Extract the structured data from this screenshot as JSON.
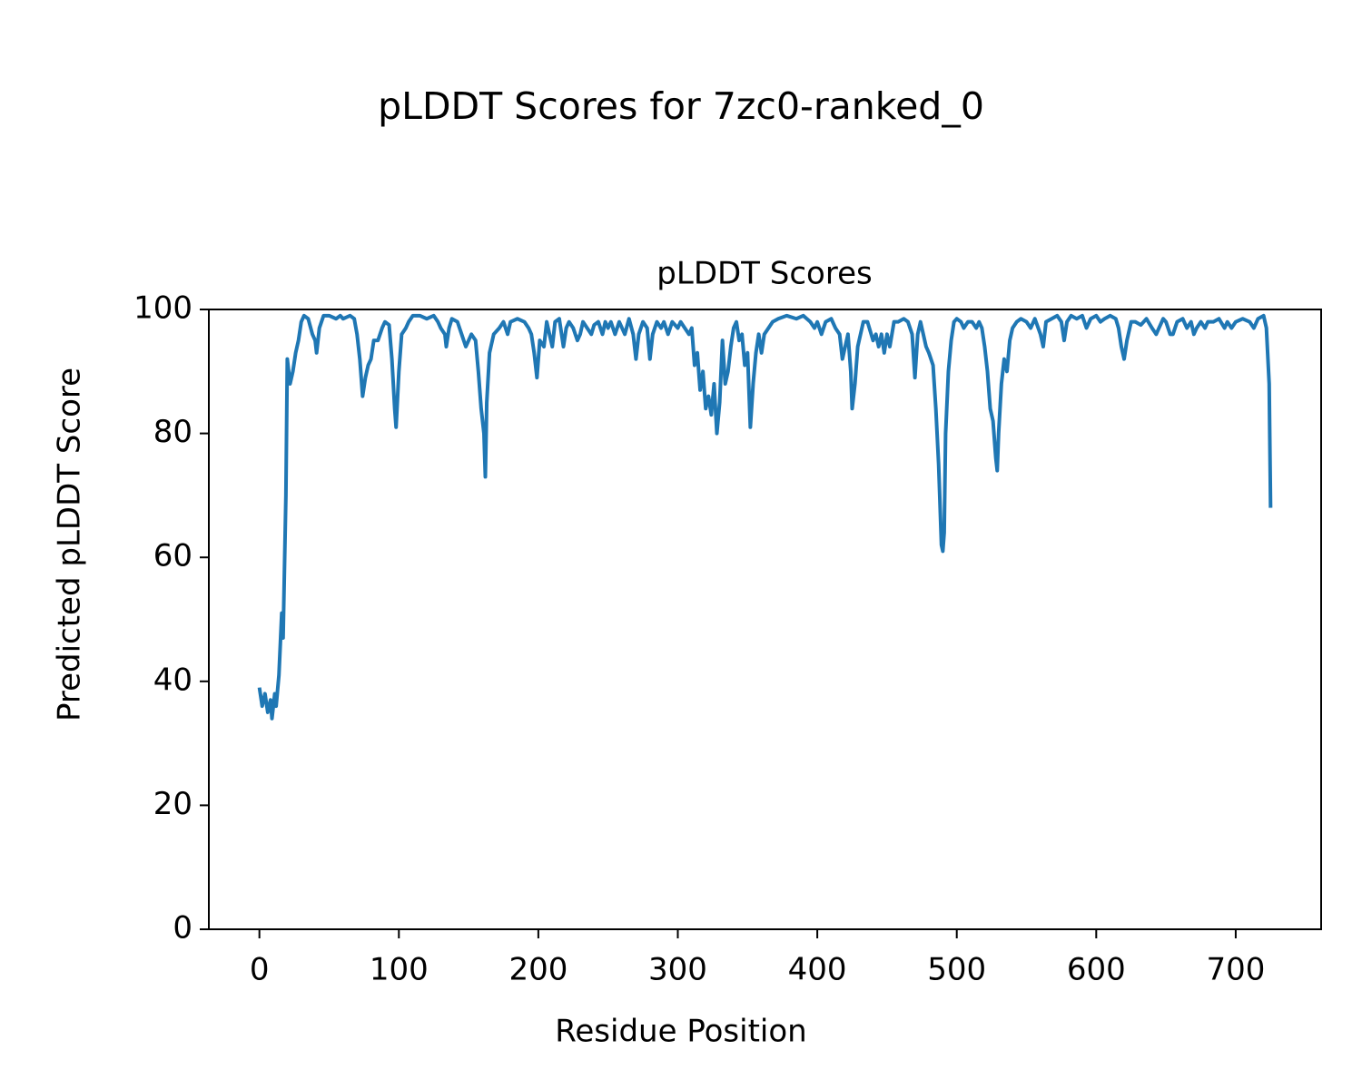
{
  "chart_data": {
    "type": "line",
    "suptitle": "pLDDT Scores for 7zc0-ranked_0",
    "title": "pLDDT Scores",
    "x_label": "Residue Position",
    "y_label": "Predicted pLDDT Score",
    "color": "#1f77b4",
    "x": [
      0,
      2,
      4,
      6,
      8,
      9,
      11,
      12,
      14,
      16,
      17,
      19,
      20,
      22,
      24,
      26,
      28,
      30,
      32,
      35,
      38,
      40,
      41,
      43,
      46,
      50,
      55,
      58,
      60,
      65,
      68,
      70,
      72,
      74,
      76,
      78,
      80,
      82,
      85,
      88,
      90,
      93,
      95,
      97,
      98,
      100,
      102,
      105,
      107,
      110,
      115,
      120,
      125,
      128,
      130,
      133,
      134,
      136,
      138,
      142,
      145,
      148,
      150,
      152,
      155,
      157,
      159,
      161,
      162,
      163,
      165,
      168,
      172,
      175,
      178,
      180,
      185,
      190,
      193,
      195,
      197,
      199,
      201,
      204,
      206,
      208,
      210,
      212,
      215,
      218,
      220,
      222,
      225,
      228,
      230,
      232,
      235,
      238,
      240,
      243,
      246,
      248,
      250,
      252,
      255,
      258,
      260,
      262,
      265,
      268,
      270,
      272,
      275,
      278,
      280,
      282,
      285,
      288,
      290,
      293,
      296,
      300,
      302,
      305,
      308,
      310,
      312,
      314,
      316,
      318,
      320,
      322,
      324,
      326,
      328,
      330,
      332,
      334,
      336,
      338,
      340,
      342,
      344,
      346,
      348,
      350,
      352,
      354,
      356,
      358,
      360,
      362,
      365,
      368,
      372,
      378,
      385,
      390,
      395,
      398,
      400,
      403,
      406,
      410,
      413,
      416,
      418,
      420,
      422,
      424,
      425,
      427,
      429,
      431,
      433,
      436,
      440,
      442,
      444,
      446,
      448,
      450,
      452,
      455,
      458,
      462,
      465,
      468,
      470,
      472,
      474,
      476,
      478,
      480,
      483,
      485,
      487,
      489,
      490,
      491,
      492,
      494,
      496,
      498,
      500,
      503,
      505,
      508,
      511,
      514,
      516,
      518,
      520,
      522,
      524,
      526,
      528,
      529,
      530,
      532,
      534,
      536,
      538,
      540,
      543,
      546,
      550,
      553,
      556,
      560,
      562,
      564,
      568,
      572,
      575,
      577,
      579,
      582,
      586,
      590,
      593,
      596,
      600,
      603,
      606,
      610,
      614,
      616,
      618,
      620,
      622,
      625,
      628,
      632,
      636,
      640,
      643,
      645,
      648,
      650,
      653,
      655,
      658,
      662,
      665,
      668,
      670,
      672,
      675,
      678,
      680,
      684,
      688,
      692,
      694,
      697,
      700,
      705,
      710,
      713,
      716,
      720,
      722,
      724,
      725
    ],
    "values": [
      39,
      36,
      38,
      35,
      37,
      34,
      38,
      36,
      41,
      51,
      47,
      70,
      92,
      88,
      90,
      93,
      95,
      98,
      99,
      98.5,
      96,
      95,
      93,
      97,
      99,
      99,
      98.5,
      99,
      98.5,
      99,
      98.5,
      96,
      92,
      86,
      89,
      91,
      92,
      95,
      95,
      97,
      98,
      97.5,
      92,
      84,
      81,
      90,
      96,
      97,
      98,
      99,
      99,
      98.5,
      99,
      98,
      97,
      96,
      94,
      97,
      98.5,
      98,
      96,
      94,
      95,
      96,
      95,
      90,
      84,
      80,
      73,
      85,
      93,
      96,
      97,
      98,
      96,
      98,
      98.5,
      98,
      97,
      96,
      93,
      89,
      95,
      94,
      98,
      96,
      94,
      98,
      98.5,
      94,
      97,
      98,
      97,
      95,
      96,
      98,
      97,
      96,
      97.5,
      98,
      96,
      98,
      97,
      98,
      96,
      98,
      97,
      96,
      98.5,
      96,
      92,
      96,
      98,
      97,
      92,
      96,
      98,
      97,
      98,
      96,
      98,
      97,
      98,
      97,
      96,
      97,
      91,
      93,
      87,
      90,
      84,
      86,
      83,
      88,
      80,
      85,
      95,
      88,
      90,
      94,
      97,
      98,
      95,
      96,
      91,
      93,
      81,
      88,
      93,
      96,
      93,
      96,
      97,
      98,
      98.5,
      99,
      98.5,
      99,
      98,
      97,
      98,
      96,
      98,
      98.5,
      97,
      96,
      92,
      94,
      96,
      90,
      84,
      88,
      94,
      96,
      98,
      98,
      95,
      96,
      94,
      96,
      93,
      96,
      94,
      98,
      98,
      98.5,
      98,
      96,
      89,
      96,
      98,
      96,
      94,
      93,
      91,
      84,
      75,
      62,
      61,
      64,
      80,
      90,
      95,
      98,
      98.5,
      98,
      97,
      98,
      98,
      97,
      98,
      97,
      94,
      90,
      84,
      82,
      76,
      74,
      80,
      88,
      92,
      90,
      95,
      97,
      98,
      98.5,
      98,
      97,
      98.5,
      96,
      94,
      98,
      98.5,
      99,
      98,
      95,
      98,
      99,
      98.5,
      99,
      97,
      98.5,
      99,
      98,
      98.5,
      99,
      98.5,
      97,
      94,
      92,
      95,
      98,
      98,
      97.5,
      98.5,
      97,
      96,
      97,
      98.5,
      98,
      96,
      96,
      98,
      98.5,
      97,
      98,
      96,
      97,
      98,
      97,
      98,
      98,
      98.5,
      97,
      98,
      97,
      98,
      98.5,
      98,
      97,
      98.5,
      99,
      97,
      88,
      68
    ],
    "xlim": [
      -36.25,
      761.25
    ],
    "ylim": [
      0,
      100
    ],
    "xticks": [
      0,
      100,
      200,
      300,
      400,
      500,
      600,
      700
    ],
    "yticks": [
      0,
      20,
      40,
      60,
      80,
      100
    ]
  }
}
